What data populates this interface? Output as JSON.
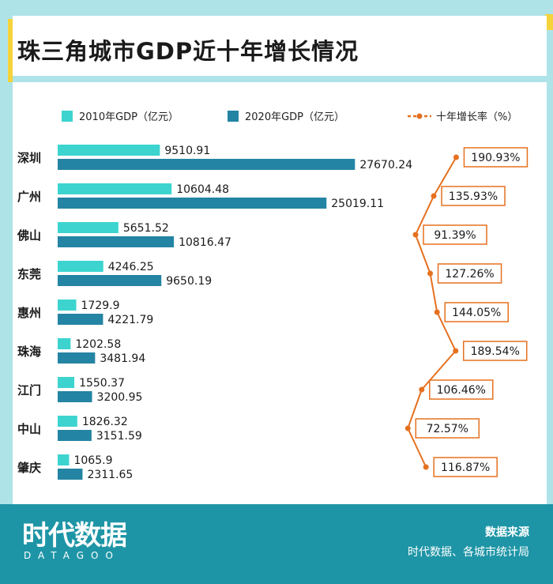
{
  "page": {
    "title": "珠三角城市GDP近十年增长情况"
  },
  "footer": {
    "logo_cn": "时代数据",
    "logo_en": "DATAGOO",
    "source_label": "数据来源",
    "source_text": "时代数据、各城市统计局"
  },
  "colors": {
    "gdp2010": "#3dd4cf",
    "gdp2020": "#2484a3",
    "growth": "#e5701f",
    "footer": "#1e95a6"
  },
  "chart_data": {
    "type": "bar",
    "orientation": "horizontal",
    "title": "珠三角城市GDP近十年增长情况",
    "categories": [
      "深圳",
      "广州",
      "佛山",
      "东莞",
      "惠州",
      "珠海",
      "江门",
      "中山",
      "肇庆"
    ],
    "series": [
      {
        "name": "2010年GDP（亿元）",
        "values": [
          9510.91,
          10604.48,
          5651.52,
          4246.25,
          1729.9,
          1202.58,
          1550.37,
          1826.32,
          1065.9
        ],
        "labels": [
          "9510.91",
          "10604.48",
          "5651.52",
          "4246.25",
          "1729.9",
          "1202.58",
          "1550.37",
          "1826.32",
          "1065.9"
        ]
      },
      {
        "name": "2020年GDP（亿元）",
        "values": [
          27670.24,
          25019.11,
          10816.47,
          9650.19,
          4221.79,
          3481.94,
          3200.95,
          3151.59,
          2311.65
        ],
        "labels": [
          "27670.24",
          "25019.11",
          "10816.47",
          "9650.19",
          "4221.79",
          "3481.94",
          "3200.95",
          "3151.59",
          "2311.65"
        ]
      }
    ],
    "growth": {
      "name": "十年增长率（%）",
      "values": [
        190.93,
        135.93,
        91.39,
        127.26,
        144.05,
        189.54,
        106.46,
        72.57,
        116.87
      ],
      "labels": [
        "190.93%",
        "135.93%",
        "91.39%",
        "127.26%",
        "144.05%",
        "189.54%",
        "106.46%",
        "72.57%",
        "116.87%"
      ],
      "range": [
        72,
        192
      ]
    },
    "xlim": [
      0,
      30000
    ],
    "legend_position": "top",
    "grid": false
  }
}
